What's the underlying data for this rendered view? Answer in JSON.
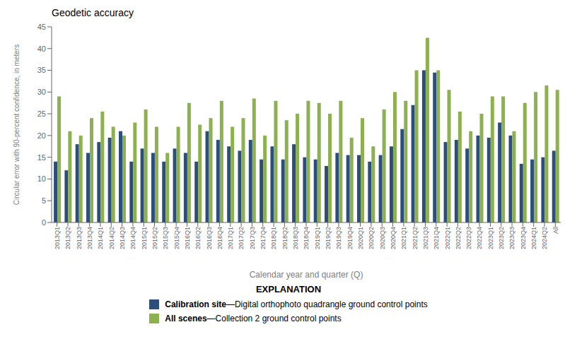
{
  "chart_data": {
    "type": "bar",
    "title": "Geodetic accuracy",
    "xlabel": "Calendar year and quarter (Q)",
    "ylabel": "Circular error with 90-percent confidence, in meters",
    "categories": [
      "2013Q1",
      "2013Q2",
      "2013Q3",
      "2013Q4",
      "2014Q1",
      "2014Q2",
      "2014Q3",
      "2014Q4",
      "2015Q1",
      "2015Q2",
      "2015Q3",
      "2015Q4",
      "2016Q1",
      "2016Q2",
      "2016Q3",
      "2016Q4",
      "2017Q1",
      "2017Q2",
      "2017Q3",
      "2017Q4",
      "2018Q1",
      "2018Q2",
      "2018Q3",
      "2018Q4",
      "2019Q1",
      "2019Q2",
      "2019Q3",
      "2019Q4",
      "2020Q1",
      "2020Q2",
      "2020Q3",
      "2020Q4",
      "2021Q1",
      "2021Q2",
      "2021Q3",
      "2021Q4",
      "2022Q1",
      "2022Q2",
      "2022Q3",
      "2022Q4",
      "2023Q1",
      "2023Q2",
      "2023Q3",
      "2023Q4",
      "2024Q1",
      "2024Q2",
      "All"
    ],
    "series": [
      {
        "name": "Calibration site",
        "description": "—Digital orthophoto quadrangle ground control points",
        "color": "#2b4e7e",
        "values": [
          14,
          12,
          18,
          16,
          18.5,
          19.5,
          21,
          14,
          17,
          16,
          14,
          17,
          16,
          14,
          21,
          19,
          17.5,
          16.5,
          19,
          14.5,
          17.5,
          14.5,
          18,
          15,
          14.5,
          13,
          16,
          15.5,
          15.5,
          14,
          15.5,
          17.5,
          21.5,
          27,
          35,
          34.5,
          18.5,
          19,
          17,
          20,
          19.5,
          23,
          20,
          13.5,
          14.5,
          15,
          16.5
        ]
      },
      {
        "name": "All scenes",
        "description": "—Collection 2 ground control points",
        "color": "#8db050",
        "values": [
          29,
          21,
          20,
          24,
          25.5,
          22,
          20,
          23,
          26,
          22,
          16,
          22,
          27.5,
          22.5,
          24,
          28,
          22,
          24,
          28.5,
          20,
          28,
          23.5,
          25,
          28,
          27.5,
          25,
          28,
          19.5,
          24,
          17.5,
          26,
          30,
          28,
          35,
          42.5,
          35,
          30.5,
          25.5,
          21,
          25,
          29,
          29,
          21,
          27.5,
          30,
          31.5,
          30.5
        ]
      }
    ],
    "ylim": [
      0,
      45
    ],
    "yticks": [
      0,
      5,
      10,
      15,
      20,
      25,
      30,
      35,
      40,
      45
    ],
    "grid": false,
    "legend_title": "EXPLANATION"
  }
}
